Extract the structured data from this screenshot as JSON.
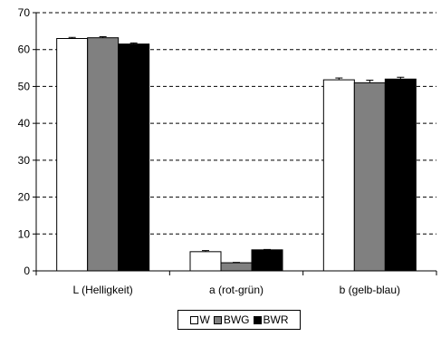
{
  "chart_data": {
    "type": "bar",
    "categories": [
      "L (Helligkeit)",
      "a (rot-grün)",
      "b (gelb-blau)"
    ],
    "series": [
      {
        "name": "W",
        "color": "#ffffff",
        "values": [
          63.0,
          5.2,
          51.8
        ],
        "error": [
          0.3,
          0.3,
          0.5
        ]
      },
      {
        "name": "BWG",
        "color": "#808080",
        "values": [
          63.2,
          2.2,
          51.0
        ],
        "error": [
          0.3,
          0.1,
          0.7
        ]
      },
      {
        "name": "BWR",
        "color": "#000000",
        "values": [
          61.5,
          5.7,
          52.0
        ],
        "error": [
          0.3,
          0.1,
          0.5
        ]
      }
    ],
    "ylim": [
      0,
      70
    ],
    "yticks": [
      0,
      10,
      20,
      30,
      40,
      50,
      60,
      70
    ],
    "grid": true,
    "legend_position": "bottom-center"
  }
}
